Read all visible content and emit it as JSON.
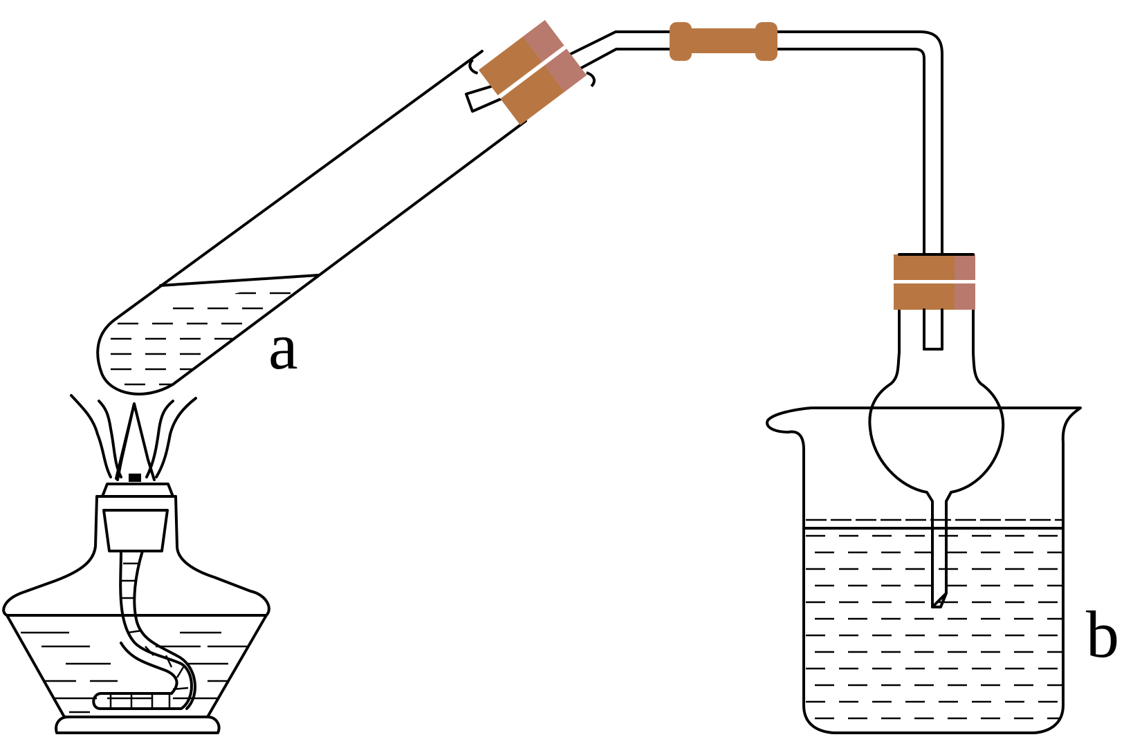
{
  "labels": {
    "tube": "a",
    "beaker": "b"
  },
  "colors": {
    "stopper": "#b87742",
    "stopper_shade": "#b97a6e",
    "line": "#000000",
    "background": "#ffffff"
  }
}
